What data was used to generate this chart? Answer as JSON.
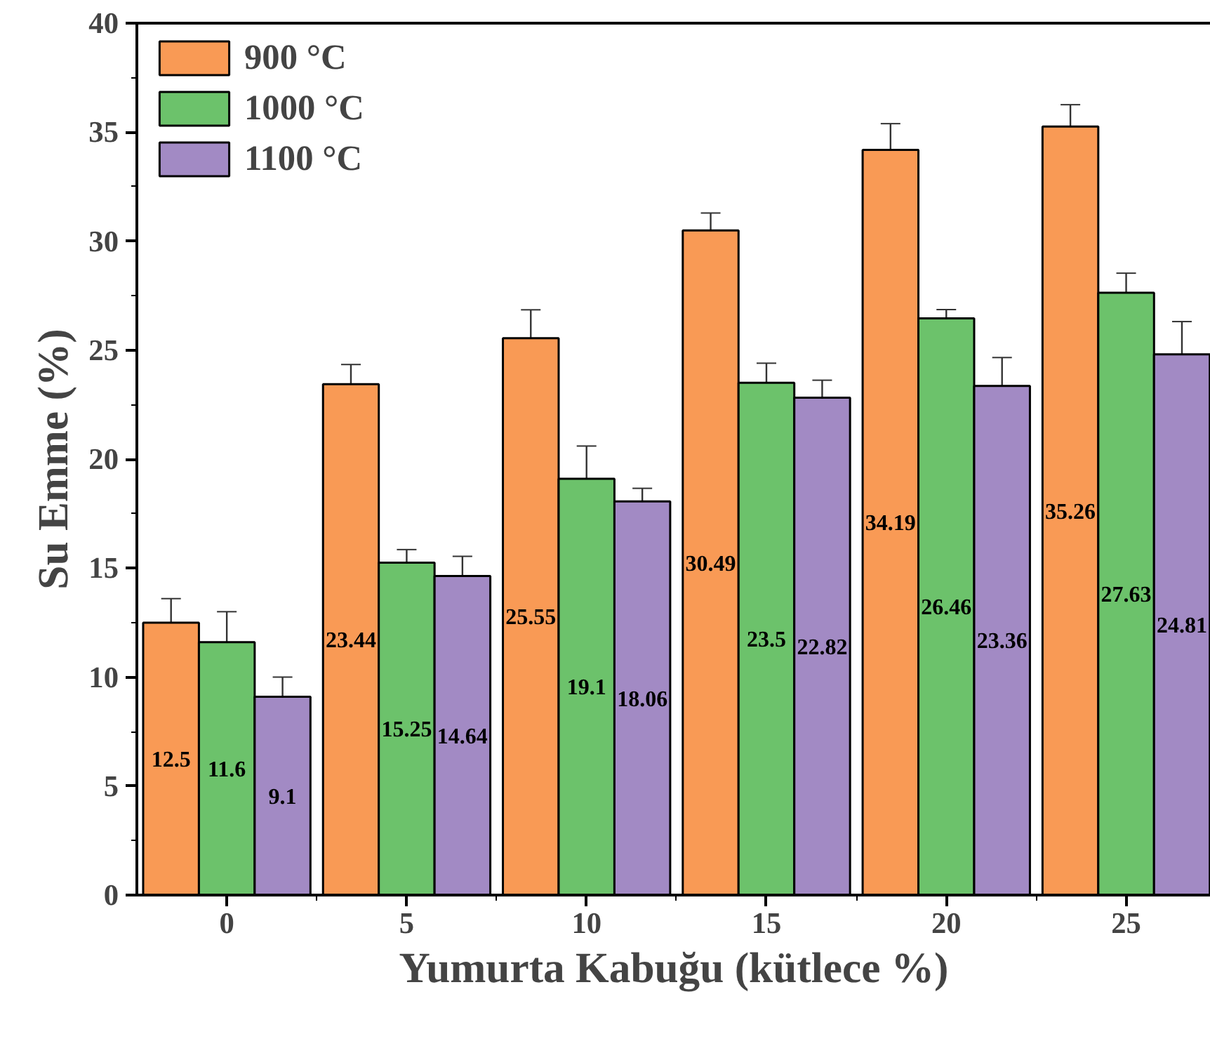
{
  "chart_data": {
    "type": "bar",
    "xlabel": "Yumurta Kabuğu (kütlece %)",
    "ylabel": "Su Emme (%)",
    "x": [
      0,
      5,
      10,
      15,
      20,
      25
    ],
    "series": [
      {
        "name": "900 °C",
        "color": "#f99a55",
        "values": [
          12.5,
          23.44,
          25.55,
          30.49,
          34.19,
          35.26
        ],
        "errors": [
          1.1,
          0.9,
          1.3,
          0.8,
          1.2,
          1.0
        ]
      },
      {
        "name": "1000 °C",
        "color": "#6cc26b",
        "values": [
          11.6,
          15.25,
          19.1,
          23.5,
          26.46,
          27.63
        ],
        "errors": [
          1.4,
          0.6,
          1.5,
          0.9,
          0.4,
          0.9
        ]
      },
      {
        "name": "1100 °C",
        "color": "#a28ac4",
        "values": [
          9.1,
          14.64,
          18.06,
          22.82,
          23.36,
          24.81
        ],
        "errors": [
          0.9,
          0.9,
          0.6,
          0.8,
          1.3,
          1.5
        ]
      }
    ],
    "xlim": [
      -2.5,
      27.35
    ],
    "xticks": [
      0,
      5,
      10,
      15,
      20,
      25
    ],
    "ylim": [
      0,
      40
    ],
    "yticks": [
      0,
      5,
      10,
      15,
      20,
      25,
      30,
      35,
      40
    ],
    "data_labels": true,
    "legend": "top left",
    "grid": false
  }
}
